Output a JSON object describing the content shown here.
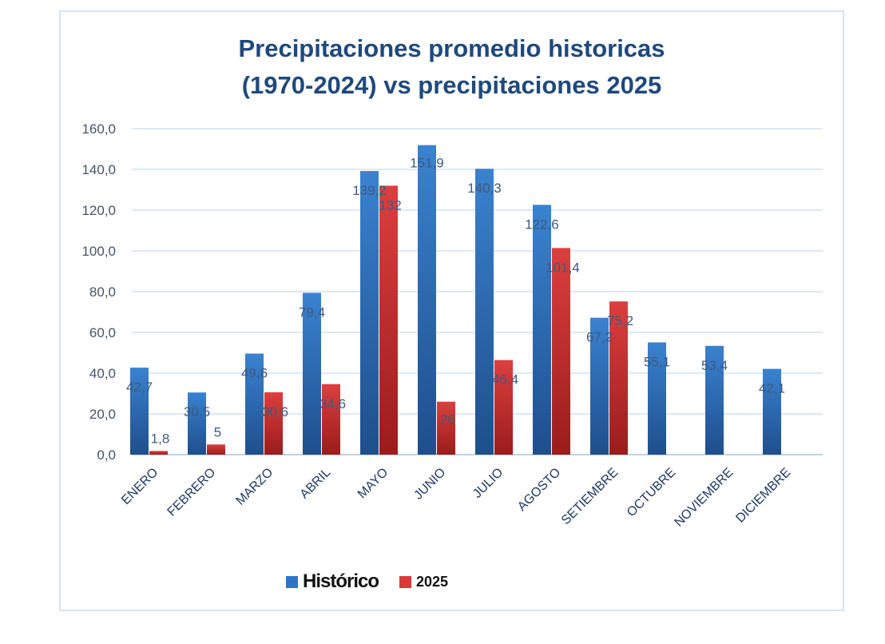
{
  "chart_data": {
    "type": "bar",
    "title": [
      "Precipitaciones promedio historicas",
      "(1970-2024) vs precipitaciones 2025"
    ],
    "categories": [
      "ENERO",
      "FEBRERO",
      "MARZO",
      "ABRIL",
      "MAYO",
      "JUNIO",
      "JULIO",
      "AGOSTO",
      "SETIEMBRE",
      "OCTUBRE",
      "NOVIEMBRE",
      "DICIEMBRE"
    ],
    "series": [
      {
        "name": "Histórico",
        "color": "#2e75c6",
        "colorDark": "#1f4e8c",
        "values": [
          42.7,
          30.5,
          49.6,
          79.4,
          139.2,
          151.9,
          140.3,
          122.6,
          67.2,
          55.1,
          53.4,
          42.1
        ],
        "labels": [
          "42,7",
          "30,5",
          "49,6",
          "79,4",
          "139,2",
          "151,9",
          "140,3",
          "122,6",
          "67,2",
          "55,1",
          "53,4",
          "42,1"
        ]
      },
      {
        "name": "2025",
        "color": "#d83a3a",
        "colorDark": "#9b1c1c",
        "values": [
          1.8,
          5,
          30.6,
          34.6,
          132,
          26,
          46.4,
          101.4,
          75.2,
          null,
          null,
          null
        ],
        "labels": [
          "1,8",
          "5",
          "30,6",
          "34,6",
          "132",
          "26",
          "46,4",
          "101,4",
          "75,2",
          null,
          null,
          null
        ]
      }
    ],
    "yticks": [
      "0,0",
      "20,0",
      "40,0",
      "60,0",
      "80,0",
      "100,0",
      "120,0",
      "140,0",
      "160,0"
    ],
    "ylim": [
      0,
      160
    ],
    "grid": true,
    "legend": "bottom"
  }
}
